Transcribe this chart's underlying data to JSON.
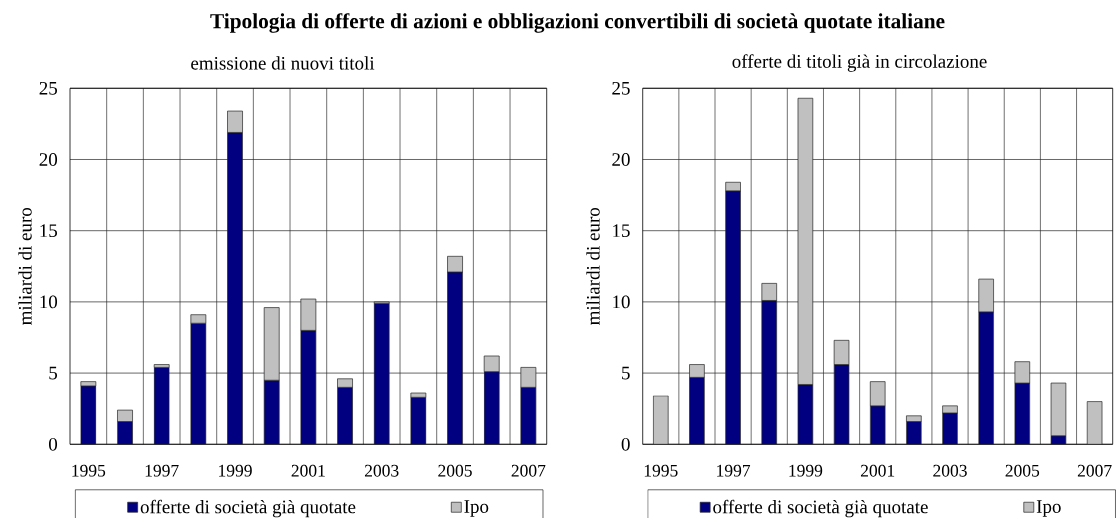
{
  "chart_data": [
    {
      "type": "bar",
      "title": "Tipologia di offerte di azioni e obbligazioni convertibili di società quotate italiane",
      "subtitle": "emissione di nuovi titoli",
      "ylabel": "miliardi di euro",
      "categories": [
        "1995",
        null,
        "1997",
        null,
        "1999",
        null,
        "2001",
        null,
        "2003",
        null,
        "2005",
        null,
        "2007"
      ],
      "stacked": true,
      "series": [
        {
          "name": "offerte di società già quotate",
          "color": "#000080",
          "values": [
            4.1,
            1.6,
            5.4,
            8.5,
            21.9,
            4.5,
            8.0,
            4.0,
            9.9,
            3.3,
            12.1,
            5.1,
            4.0
          ]
        },
        {
          "name": "Ipo",
          "color": "#c0c0c0",
          "values": [
            0.3,
            0.8,
            0.2,
            0.6,
            1.5,
            5.1,
            2.2,
            0.6,
            0.1,
            0.3,
            1.1,
            1.1,
            1.4
          ]
        }
      ],
      "ylim": [
        0,
        25
      ],
      "yticks": [
        0,
        5,
        10,
        15,
        20,
        25
      ],
      "grid": true,
      "legend": "bottom"
    },
    {
      "type": "bar",
      "subtitle": "offerte di titoli già in circolazione",
      "ylabel": "miliardi di euro",
      "categories": [
        "1995",
        null,
        "1997",
        null,
        "1999",
        null,
        "2001",
        null,
        "2003",
        null,
        "2005",
        null,
        "2007"
      ],
      "stacked": true,
      "series": [
        {
          "name": "offerte di società già quotate",
          "color": "#000080",
          "values": [
            null,
            4.7,
            17.8,
            10.1,
            4.2,
            5.6,
            2.7,
            1.6,
            2.2,
            9.3,
            4.3,
            0.6,
            null
          ]
        },
        {
          "name": "Ipo",
          "color": "#c0c0c0",
          "values": [
            3.4,
            0.9,
            0.6,
            1.2,
            20.1,
            1.7,
            1.7,
            0.4,
            0.5,
            2.3,
            1.5,
            3.7,
            3.0
          ]
        }
      ],
      "ylim": [
        0,
        25
      ],
      "yticks": [
        0,
        5,
        10,
        15,
        20,
        25
      ],
      "grid": true,
      "legend": "bottom"
    }
  ]
}
